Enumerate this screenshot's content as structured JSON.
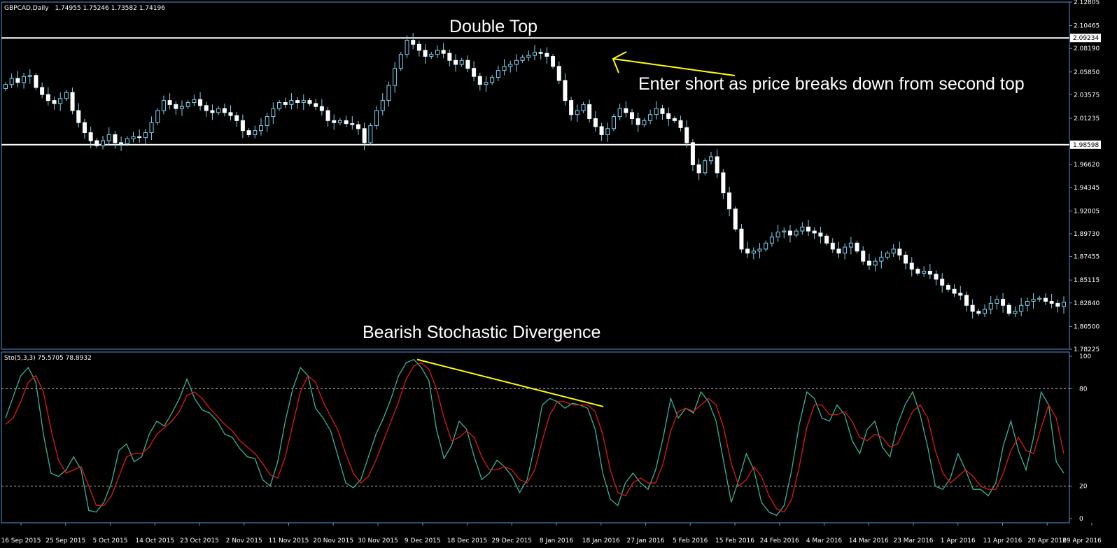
{
  "header": {
    "symbol": "GBPCAD,Daily",
    "ohlc": "1.74955 1.75246 1.73582 1.74196",
    "stoch_label": "Sto(5,3,3) 75.5705 78.8932"
  },
  "annotations": {
    "double_top": "Double Top",
    "enter_short": "Enter short as price breaks down from second top",
    "bearish_div": "Bearish Stochastic Divergence"
  },
  "colors": {
    "background": "#000000",
    "frame": "#5a93d6",
    "text": "#ffffff",
    "candle": "#ffffff",
    "wick": "#7fd4f0",
    "stoch_main": "#36b39b",
    "stoch_signal": "#e01818",
    "annotation": "#ffff00",
    "level_line": "#ffffff"
  },
  "chart_data": [
    {
      "type": "candlestick",
      "symbol": "GBPCAD",
      "timeframe": "Daily",
      "ylim": [
        1.78225,
        2.12805
      ],
      "y_ticks": [
        "2.12805",
        "2.10465",
        "2.08190",
        "2.05850",
        "2.03575",
        "2.01235",
        "1.98598",
        "1.96620",
        "1.94345",
        "1.92005",
        "1.89730",
        "1.87455",
        "1.85115",
        "1.82840",
        "1.80500",
        "1.78225"
      ],
      "x_ticks": [
        "16 Sep 2015",
        "25 Sep 2015",
        "5 Oct 2015",
        "14 Oct 2015",
        "23 Oct 2015",
        "2 Nov 2015",
        "11 Nov 2015",
        "20 Nov 2015",
        "30 Nov 2015",
        "9 Dec 2015",
        "18 Dec 2015",
        "29 Dec 2015",
        "8 Jan 2016",
        "18 Jan 2016",
        "27 Jan 2016",
        "5 Feb 2016",
        "15 Feb 2016",
        "24 Feb 2016",
        "4 Mar 2016",
        "14 Mar 2016",
        "23 Mar 2016",
        "1 Apr 2016",
        "11 Apr 2016",
        "20 Apr 2016",
        "29 Apr 2016"
      ],
      "resistance": 2.09234,
      "support": 1.98598,
      "close_path": [
        2.046,
        2.052,
        2.048,
        2.054,
        2.055,
        2.043,
        2.036,
        2.03,
        2.027,
        2.032,
        2.038,
        2.02,
        2.008,
        1.998,
        1.99,
        1.985,
        1.99,
        1.996,
        1.988,
        1.987,
        1.992,
        1.994,
        1.993,
        1.998,
        2.008,
        2.02,
        2.03,
        2.026,
        2.022,
        2.024,
        2.028,
        2.031,
        2.025,
        2.02,
        2.018,
        2.022,
        2.018,
        2.015,
        2.01,
        2.0,
        1.996,
        2.0,
        2.005,
        2.014,
        2.022,
        2.028,
        2.026,
        2.03,
        2.028,
        2.03,
        2.027,
        2.024,
        2.02,
        2.01,
        2.008,
        2.01,
        2.007,
        2.006,
        2.002,
        1.988,
        2.005,
        2.02,
        2.03,
        2.045,
        2.062,
        2.076,
        2.09,
        2.086,
        2.08,
        2.074,
        2.076,
        2.08,
        2.077,
        2.07,
        2.066,
        2.07,
        2.062,
        2.054,
        2.046,
        2.048,
        2.053,
        2.06,
        2.064,
        2.066,
        2.07,
        2.073,
        2.075,
        2.078,
        2.077,
        2.074,
        2.064,
        2.05,
        2.03,
        2.016,
        2.02,
        2.026,
        2.012,
        2.004,
        1.996,
        2.002,
        2.014,
        2.022,
        2.018,
        2.012,
        2.006,
        2.01,
        2.016,
        2.022,
        2.017,
        2.012,
        2.01,
        2.003,
        1.988,
        1.966,
        1.958,
        1.97,
        1.974,
        1.958,
        1.938,
        1.922,
        1.902,
        1.882,
        1.878,
        1.88,
        1.882,
        1.888,
        1.894,
        1.899,
        1.9,
        1.896,
        1.9,
        1.904,
        1.9,
        1.898,
        1.895,
        1.888,
        1.882,
        1.878,
        1.884,
        1.888,
        1.88,
        1.87,
        1.866,
        1.87,
        1.874,
        1.878,
        1.882,
        1.876,
        1.868,
        1.862,
        1.858,
        1.86,
        1.857,
        1.852,
        1.846,
        1.842,
        1.838,
        1.836,
        1.826,
        1.82,
        1.818,
        1.822,
        1.828,
        1.832,
        1.826,
        1.818,
        1.82,
        1.826,
        1.83,
        1.832,
        1.833,
        1.83,
        1.828,
        1.825,
        1.829
      ],
      "annotation_points": {
        "double_top_first": {
          "date": "9 Dec 2015",
          "price": 2.09234
        },
        "double_top_second": {
          "date": "14 Jan 2016",
          "price": 2.0905
        }
      }
    },
    {
      "type": "line",
      "indicator": "Stochastic(5,3,3)",
      "ylim": [
        0,
        100
      ],
      "y_ticks": [
        "100",
        "80",
        "20",
        "0"
      ],
      "levels": [
        80,
        20
      ],
      "series": [
        {
          "name": "Sto main",
          "color": "#36b39b",
          "values": [
            62,
            75,
            88,
            93,
            84,
            52,
            28,
            26,
            30,
            38,
            30,
            5,
            4,
            10,
            22,
            42,
            46,
            35,
            38,
            52,
            60,
            57,
            65,
            74,
            86,
            74,
            67,
            65,
            60,
            52,
            50,
            43,
            38,
            37,
            24,
            20,
            35,
            60,
            80,
            93,
            88,
            68,
            62,
            54,
            38,
            22,
            19,
            24,
            38,
            52,
            62,
            74,
            88,
            96,
            98,
            93,
            85,
            55,
            37,
            45,
            60,
            55,
            38,
            24,
            28,
            36,
            32,
            26,
            16,
            24,
            45,
            70,
            74,
            72,
            68,
            71,
            70,
            68,
            55,
            28,
            12,
            8,
            22,
            28,
            22,
            18,
            30,
            50,
            74,
            62,
            68,
            65,
            78,
            72,
            60,
            35,
            10,
            24,
            40,
            30,
            10,
            4,
            2,
            8,
            30,
            58,
            78,
            74,
            62,
            60,
            70,
            64,
            48,
            40,
            55,
            60,
            44,
            38,
            58,
            70,
            78,
            64,
            44,
            20,
            18,
            25,
            40,
            30,
            18,
            18,
            14,
            22,
            45,
            60,
            42,
            30,
            50,
            78,
            70,
            35,
            28
          ]
        },
        {
          "name": "Sto signal",
          "color": "#e01818",
          "values": [
            58,
            62,
            72,
            84,
            88,
            78,
            55,
            36,
            28,
            30,
            32,
            20,
            8,
            8,
            14,
            26,
            38,
            40,
            40,
            44,
            52,
            56,
            60,
            66,
            76,
            78,
            74,
            68,
            63,
            58,
            54,
            48,
            44,
            40,
            34,
            27,
            25,
            38,
            58,
            78,
            88,
            84,
            72,
            63,
            54,
            40,
            28,
            22,
            26,
            36,
            48,
            60,
            72,
            86,
            94,
            96,
            92,
            80,
            62,
            48,
            50,
            54,
            50,
            38,
            30,
            30,
            32,
            30,
            24,
            22,
            30,
            48,
            64,
            72,
            72,
            70,
            70,
            70,
            66,
            52,
            30,
            16,
            14,
            22,
            25,
            22,
            22,
            34,
            54,
            66,
            68,
            66,
            70,
            74,
            70,
            56,
            34,
            20,
            24,
            32,
            26,
            14,
            6,
            4,
            12,
            32,
            56,
            70,
            70,
            64,
            64,
            66,
            60,
            50,
            48,
            52,
            50,
            44,
            46,
            56,
            66,
            70,
            62,
            42,
            28,
            22,
            26,
            30,
            26,
            20,
            18,
            18,
            28,
            42,
            50,
            42,
            40,
            56,
            70,
            62,
            40
          ]
        }
      ],
      "divergence_line": {
        "from": 98,
        "to": 69
      }
    }
  ]
}
